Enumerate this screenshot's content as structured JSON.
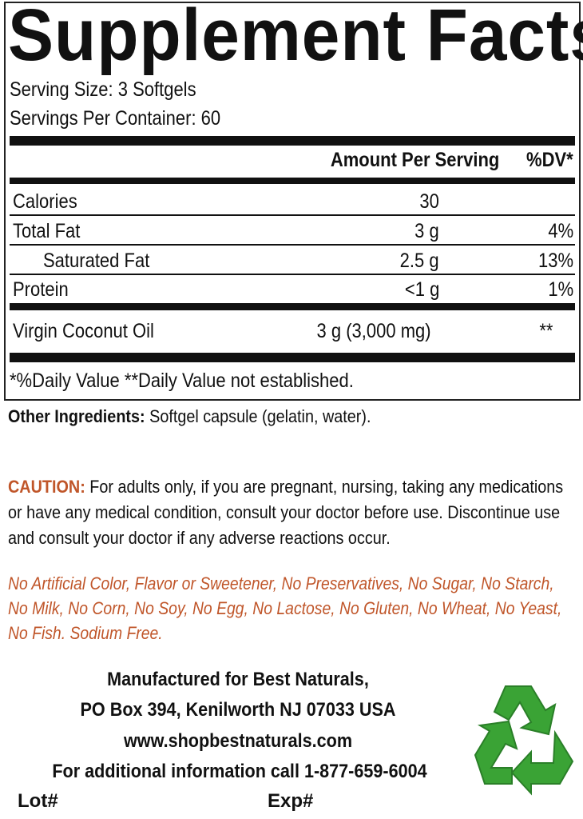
{
  "facts": {
    "title": "Supplement Facts",
    "serving_size": "Serving Size: 3 Softgels",
    "servings_per_container": "Servings Per Container: 60",
    "header": {
      "amount": "Amount Per Serving",
      "dv": "%DV*"
    },
    "rows": [
      {
        "label": "Calories",
        "amount": "30",
        "dv": ""
      },
      {
        "label": "Total Fat",
        "amount": "3 g",
        "dv": "4%"
      },
      {
        "label": "Saturated Fat",
        "amount": "2.5 g",
        "dv": "13%"
      },
      {
        "label": "Protein",
        "amount": "<1 g",
        "dv": "1%"
      },
      {
        "label": "Virgin Coconut Oil",
        "amount": "3 g (3,000 mg)",
        "dv": "**"
      }
    ],
    "footnote": "*%Daily Value **Daily Value not established."
  },
  "other_ingredients": {
    "label": "Other Ingredients:",
    "text": " Softgel capsule (gelatin, water)."
  },
  "caution": {
    "label": "CAUTION:",
    "text": " For adults only, if you are pregnant, nursing, taking any medications or have any medical condition, consult your doctor before use. Discontinue use and consult your doctor if any adverse reactions occur."
  },
  "free_from": "No Artificial Color, Flavor or Sweetener, No Preservatives, No Sugar, No Starch, No Milk, No Corn, No Soy, No Egg, No Lactose, No Gluten, No Wheat, No Yeast, No Fish. Sodium Free.",
  "manufacturer": {
    "line1": "Manufactured for Best Naturals,",
    "line2": "PO Box 394, Kenilworth NJ 07033 USA",
    "website": "www.shopbestnaturals.com",
    "info": "For additional information call 1-877-659-6004",
    "lot": "Lot#",
    "exp": "Exp#"
  },
  "colors": {
    "accent": "#c0562a",
    "recycle": "#3aa335"
  },
  "icons": [
    "recycle-icon"
  ]
}
